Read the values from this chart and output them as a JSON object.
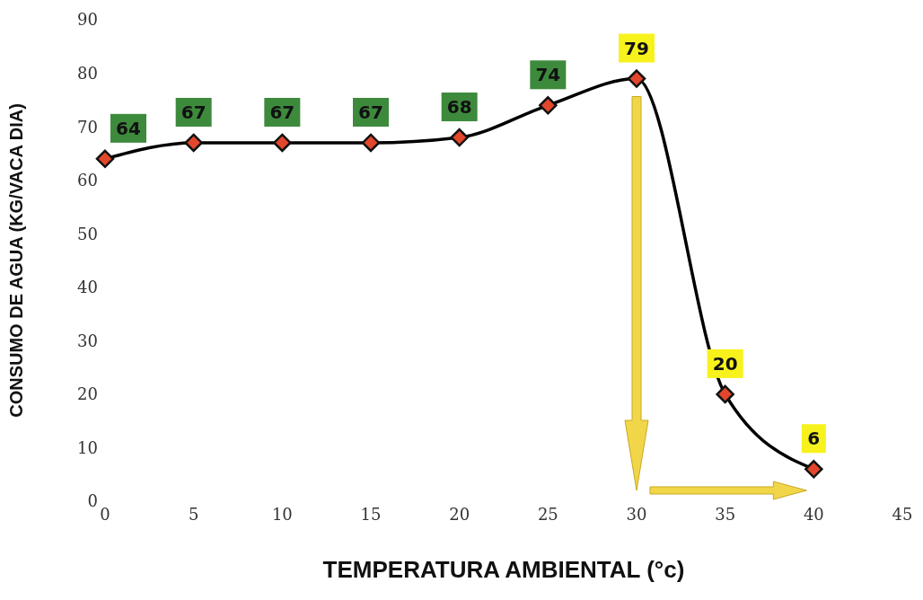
{
  "chart_data": {
    "type": "line",
    "xlabel": "TEMPERATURA AMBIENTAL (°c)",
    "ylabel": "CONSUMO DE AGUA (KG/VACA DIA)",
    "x": [
      0,
      5,
      10,
      15,
      20,
      25,
      30,
      35,
      40
    ],
    "series": [
      {
        "color": "#000000",
        "values": [
          64,
          67,
          67,
          67,
          68,
          74,
          79,
          20,
          6
        ]
      }
    ],
    "xlim": [
      0,
      45
    ],
    "xticks": [
      0,
      5,
      10,
      15,
      20,
      25,
      30,
      35,
      40,
      45
    ],
    "ylim": [
      0,
      90
    ],
    "yticks": [
      0,
      10,
      20,
      30,
      40,
      50,
      60,
      70,
      80,
      90
    ],
    "grid": false,
    "legend": false,
    "marker": "diamond",
    "line_style": "solid",
    "data_labels": true
  }
}
